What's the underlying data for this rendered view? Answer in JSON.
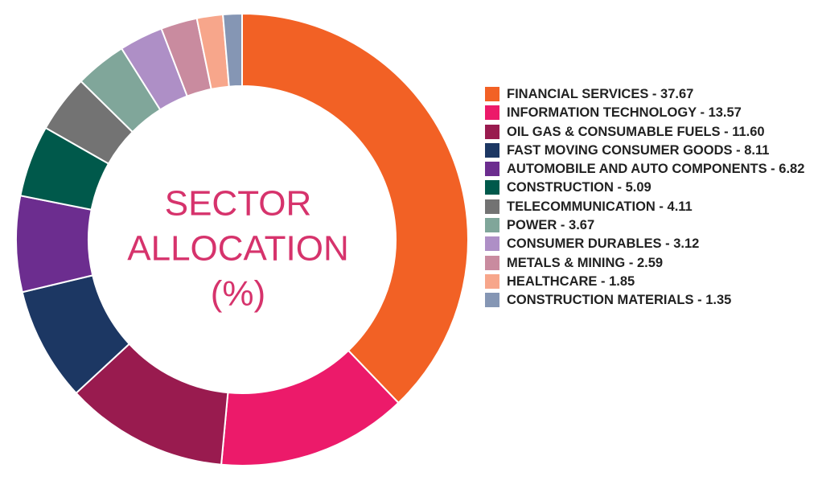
{
  "chart_data": {
    "type": "donut",
    "title": [
      "SECTOR",
      "ALLOCATION",
      "(%)"
    ],
    "label_separator": " - ",
    "categories": [
      "FINANCIAL SERVICES",
      "INFORMATION TECHNOLOGY",
      "OIL GAS & CONSUMABLE FUELS",
      "FAST MOVING CONSUMER GOODS",
      "AUTOMOBILE AND AUTO COMPONENTS",
      "CONSTRUCTION",
      "TELECOMMUNICATION",
      "POWER",
      "CONSUMER DURABLES",
      "METALS & MINING",
      "HEALTHCARE",
      "CONSTRUCTION MATERIALS"
    ],
    "values": [
      37.67,
      13.57,
      11.6,
      8.11,
      6.82,
      5.09,
      4.11,
      3.67,
      3.12,
      2.59,
      1.85,
      1.35
    ],
    "value_labels": [
      "37.67",
      "13.57",
      "11.60",
      "8.11",
      "6.82",
      "5.09",
      "4.11",
      "3.67",
      "3.12",
      "2.59",
      "1.85",
      "1.35"
    ],
    "colors": [
      "#f26125",
      "#ec1a6a",
      "#991b4f",
      "#1c3763",
      "#6c2d8f",
      "#00594b",
      "#737373",
      "#80a69a",
      "#ae8fc6",
      "#c98b9f",
      "#f7a68b",
      "#8596b4"
    ]
  }
}
